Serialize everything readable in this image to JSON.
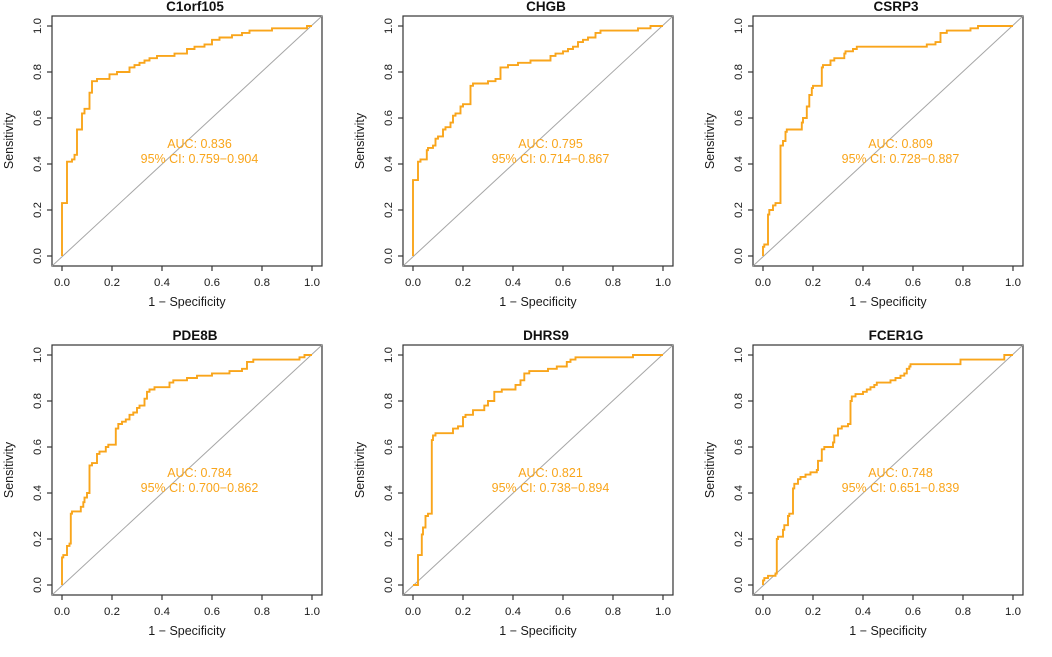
{
  "figure": {
    "background": "#ffffff",
    "colors": {
      "curve": "#F9A51B",
      "annotation": "#F9A51B",
      "diagonal": "#A6A6A6",
      "box": "#333333",
      "tick_text": "#1a1a1a",
      "title_text": "#111111"
    },
    "axes": {
      "xlabel": "1 − Specificity",
      "ylabel": "Sensitivity",
      "xlim": [
        0,
        1
      ],
      "ylim": [
        0,
        1
      ],
      "ticks": [
        0,
        0.2,
        0.4,
        0.6,
        0.8,
        1.0
      ],
      "tick_labels": [
        "0.0",
        "0.2",
        "0.4",
        "0.6",
        "0.8",
        "1.0"
      ],
      "grid": false,
      "diagonal_reference": true
    }
  },
  "chart_data": [
    {
      "type": "line",
      "title": "C1orf105",
      "auc": 0.836,
      "ci": [
        0.759,
        0.904
      ],
      "auc_label": "AUC: 0.836",
      "ci_label": "95% CI: 0.759−0.904",
      "xlabel": "1 − Specificity",
      "ylabel": "Sensitivity",
      "roc_x": [
        0,
        0,
        0.02,
        0.04,
        0.05,
        0.06,
        0.08,
        0.09,
        0.11,
        0.12,
        0.14,
        0.19,
        0.22,
        0.27,
        0.29,
        0.31,
        0.33,
        0.35,
        0.38,
        0.45,
        0.5,
        0.53,
        0.57,
        0.6,
        0.63,
        0.68,
        0.72,
        0.75,
        0.84,
        0.86,
        0.98,
        1
      ],
      "roc_y": [
        0,
        0.21,
        0.23,
        0.41,
        0.42,
        0.44,
        0.55,
        0.62,
        0.64,
        0.71,
        0.76,
        0.77,
        0.79,
        0.8,
        0.82,
        0.83,
        0.84,
        0.85,
        0.86,
        0.87,
        0.88,
        0.9,
        0.91,
        0.92,
        0.94,
        0.95,
        0.96,
        0.97,
        0.98,
        0.99,
        0.99,
        1
      ]
    },
    {
      "type": "line",
      "title": "CHGB",
      "auc": 0.795,
      "ci": [
        0.714,
        0.867
      ],
      "auc_label": "AUC: 0.795",
      "ci_label": "95% CI: 0.714−0.867",
      "xlabel": "1 − Specificity",
      "ylabel": "Sensitivity",
      "roc_x": [
        0,
        0,
        0.02,
        0.03,
        0.055,
        0.06,
        0.08,
        0.09,
        0.1,
        0.12,
        0.13,
        0.15,
        0.16,
        0.17,
        0.19,
        0.2,
        0.23,
        0.24,
        0.3,
        0.33,
        0.35,
        0.38,
        0.42,
        0.47,
        0.55,
        0.57,
        0.6,
        0.62,
        0.64,
        0.66,
        0.68,
        0.7,
        0.73,
        0.75,
        0.9,
        0.95,
        0.97,
        1
      ],
      "roc_y": [
        0,
        0.32,
        0.33,
        0.41,
        0.42,
        0.46,
        0.47,
        0.48,
        0.51,
        0.52,
        0.55,
        0.56,
        0.58,
        0.61,
        0.62,
        0.65,
        0.66,
        0.74,
        0.75,
        0.76,
        0.77,
        0.82,
        0.83,
        0.84,
        0.85,
        0.87,
        0.88,
        0.89,
        0.9,
        0.91,
        0.93,
        0.94,
        0.95,
        0.97,
        0.98,
        0.99,
        1,
        1
      ]
    },
    {
      "type": "line",
      "title": "CSRP3",
      "auc": 0.809,
      "ci": [
        0.728,
        0.887
      ],
      "auc_label": "AUC: 0.809",
      "ci_label": "95% CI: 0.728−0.887",
      "xlabel": "1 − Specificity",
      "ylabel": "Sensitivity",
      "roc_x": [
        0,
        0.005,
        0.02,
        0.025,
        0.04,
        0.05,
        0.07,
        0.08,
        0.09,
        0.095,
        0.155,
        0.16,
        0.175,
        0.185,
        0.195,
        0.2,
        0.235,
        0.24,
        0.27,
        0.285,
        0.325,
        0.33,
        0.36,
        0.375,
        0.655,
        0.69,
        0.71,
        0.735,
        0.83,
        0.86,
        0.9,
        1
      ],
      "roc_y": [
        0,
        0.04,
        0.05,
        0.18,
        0.2,
        0.22,
        0.23,
        0.48,
        0.5,
        0.54,
        0.55,
        0.58,
        0.6,
        0.65,
        0.7,
        0.73,
        0.74,
        0.82,
        0.83,
        0.85,
        0.86,
        0.88,
        0.89,
        0.9,
        0.91,
        0.92,
        0.93,
        0.97,
        0.98,
        0.99,
        1,
        1
      ]
    },
    {
      "type": "line",
      "title": "PDE8B",
      "auc": 0.784,
      "ci": [
        0.7,
        0.862
      ],
      "auc_label": "AUC: 0.784",
      "ci_label": "95% CI: 0.700−0.862",
      "xlabel": "1 − Specificity",
      "ylabel": "Sensitivity",
      "roc_x": [
        0,
        0.005,
        0.02,
        0.03,
        0.035,
        0.04,
        0.075,
        0.085,
        0.09,
        0.1,
        0.11,
        0.12,
        0.14,
        0.15,
        0.175,
        0.185,
        0.215,
        0.225,
        0.24,
        0.255,
        0.27,
        0.285,
        0.3,
        0.31,
        0.33,
        0.34,
        0.35,
        0.37,
        0.43,
        0.445,
        0.5,
        0.54,
        0.6,
        0.67,
        0.72,
        0.74,
        0.765,
        0.95,
        0.97,
        1
      ],
      "roc_y": [
        0,
        0.12,
        0.13,
        0.17,
        0.18,
        0.31,
        0.32,
        0.34,
        0.36,
        0.38,
        0.4,
        0.52,
        0.53,
        0.57,
        0.58,
        0.6,
        0.61,
        0.68,
        0.7,
        0.71,
        0.72,
        0.74,
        0.75,
        0.77,
        0.78,
        0.81,
        0.84,
        0.85,
        0.86,
        0.88,
        0.89,
        0.9,
        0.91,
        0.92,
        0.93,
        0.94,
        0.97,
        0.98,
        0.99,
        1
      ]
    },
    {
      "type": "line",
      "title": "DHRS9",
      "auc": 0.821,
      "ci": [
        0.738,
        0.894
      ],
      "auc_label": "AUC: 0.821",
      "ci_label": "95% CI: 0.738−0.894",
      "xlabel": "1 − Specificity",
      "ylabel": "Sensitivity",
      "roc_x": [
        0,
        0.02,
        0.02,
        0.035,
        0.04,
        0.05,
        0.06,
        0.075,
        0.08,
        0.09,
        0.16,
        0.18,
        0.2,
        0.21,
        0.24,
        0.285,
        0.3,
        0.325,
        0.355,
        0.41,
        0.43,
        0.445,
        0.465,
        0.54,
        0.575,
        0.615,
        0.63,
        0.65,
        0.68,
        0.88,
        0.89,
        1
      ],
      "roc_y": [
        0,
        0,
        0.12,
        0.13,
        0.22,
        0.25,
        0.3,
        0.31,
        0.63,
        0.65,
        0.66,
        0.68,
        0.69,
        0.73,
        0.74,
        0.76,
        0.78,
        0.8,
        0.84,
        0.85,
        0.87,
        0.89,
        0.92,
        0.93,
        0.94,
        0.95,
        0.97,
        0.98,
        0.99,
        0.99,
        1,
        1
      ]
    },
    {
      "type": "line",
      "title": "FCER1G",
      "auc": 0.748,
      "ci": [
        0.651,
        0.839
      ],
      "auc_label": "AUC: 0.748",
      "ci_label": "95% CI: 0.651−0.839",
      "xlabel": "1 − Specificity",
      "ylabel": "Sensitivity",
      "roc_x": [
        0,
        0.005,
        0.02,
        0.05,
        0.055,
        0.06,
        0.08,
        0.085,
        0.1,
        0.105,
        0.12,
        0.125,
        0.14,
        0.15,
        0.17,
        0.19,
        0.215,
        0.22,
        0.235,
        0.245,
        0.28,
        0.285,
        0.3,
        0.315,
        0.34,
        0.35,
        0.355,
        0.37,
        0.4,
        0.415,
        0.43,
        0.445,
        0.455,
        0.51,
        0.53,
        0.55,
        0.565,
        0.575,
        0.585,
        0.59,
        0.6,
        0.79,
        0.8,
        0.965,
        0.975,
        1
      ],
      "roc_y": [
        0,
        0.02,
        0.03,
        0.04,
        0.05,
        0.2,
        0.21,
        0.24,
        0.26,
        0.3,
        0.31,
        0.42,
        0.44,
        0.46,
        0.47,
        0.48,
        0.49,
        0.5,
        0.54,
        0.59,
        0.6,
        0.62,
        0.65,
        0.68,
        0.69,
        0.7,
        0.8,
        0.82,
        0.83,
        0.84,
        0.85,
        0.86,
        0.87,
        0.88,
        0.89,
        0.9,
        0.91,
        0.92,
        0.94,
        0.95,
        0.96,
        0.96,
        0.98,
        0.98,
        1,
        1
      ]
    }
  ]
}
